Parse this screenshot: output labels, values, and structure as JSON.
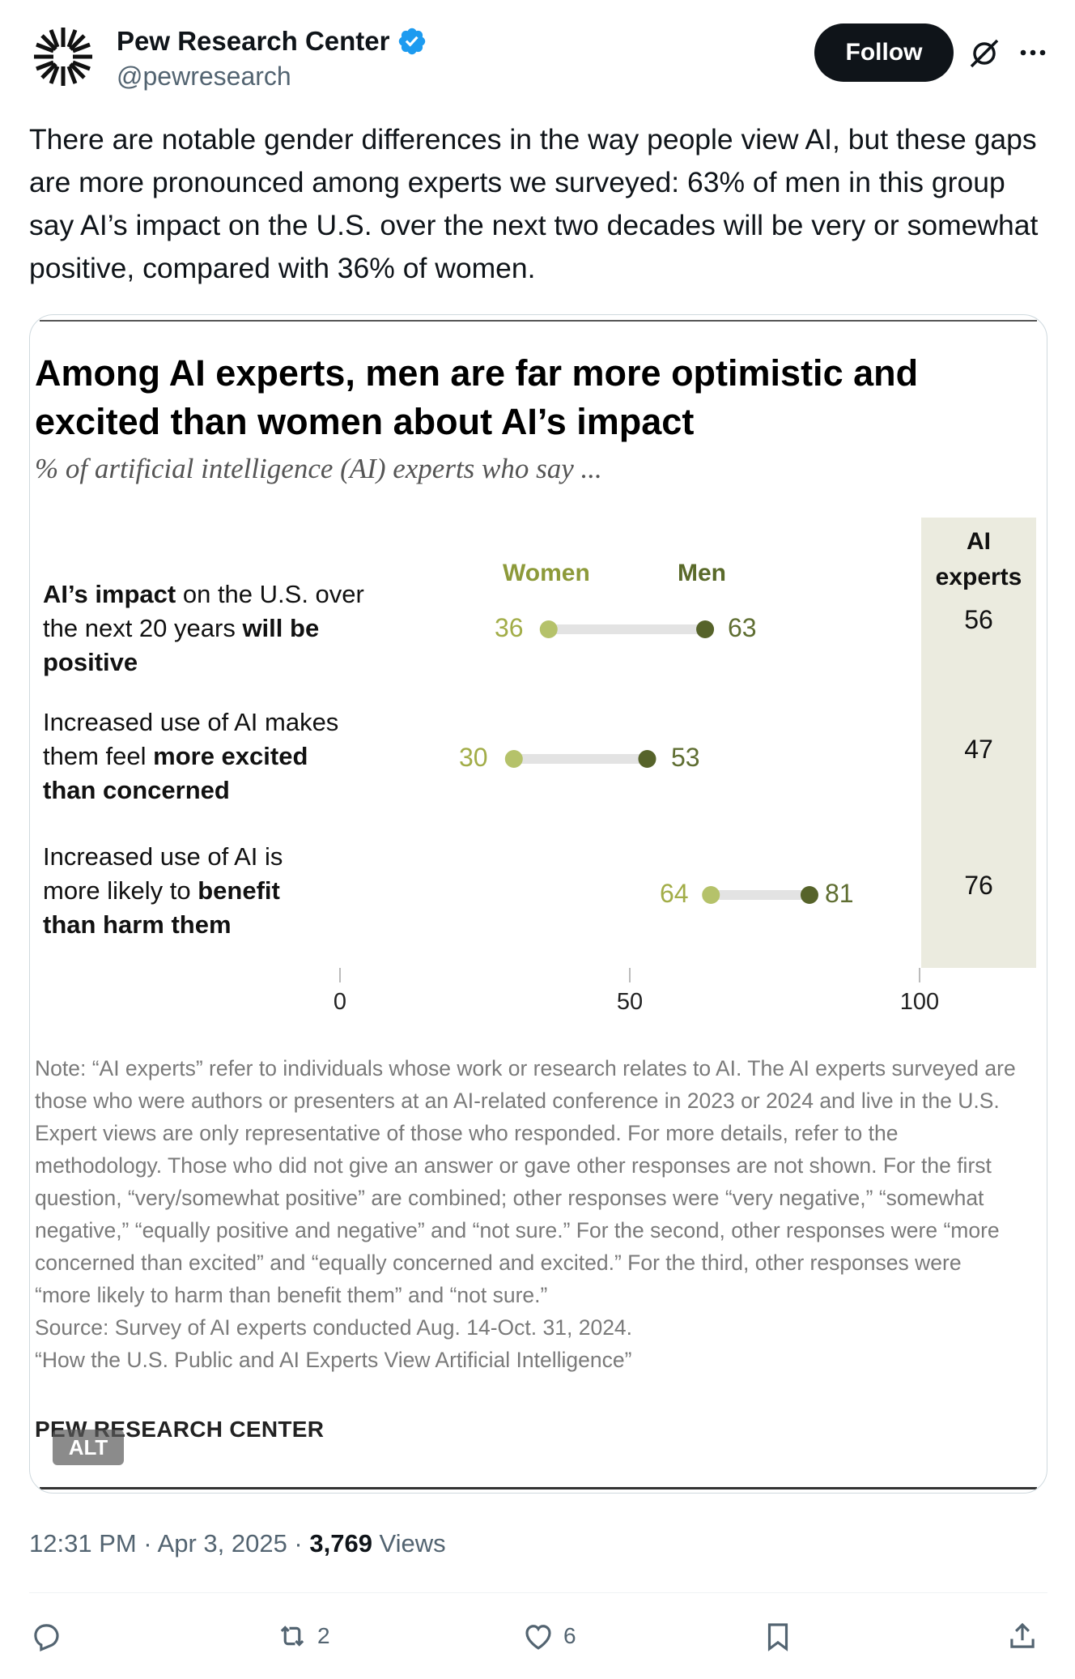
{
  "author": {
    "name": "Pew Research Center",
    "handle": "@pewresearch",
    "follow_label": "Follow"
  },
  "tweet": {
    "text": "There are notable gender differences in the way people view AI, but these gaps are more pronounced among experts we surveyed: 63% of men in this group say AI’s impact on the U.S. over the next two decades will be very or somewhat positive, compared with 36% of women."
  },
  "chart": {
    "title": "Among AI experts, men are far more optimistic and excited than women about AI’s impact",
    "subtitle": "% of artificial intelligence (AI) experts who say ...",
    "legend_women": "Women",
    "legend_men": "Men",
    "experts_header_1": "AI",
    "experts_header_2": "experts",
    "rows": [
      {
        "label_pre": "",
        "label_bold_1": "AI’s impact",
        "label_mid": " on the U.S. over the next 20 years ",
        "label_bold_2": "will be positive",
        "women": 36,
        "men": 63,
        "experts": 56
      },
      {
        "label_pre": "Increased use of AI makes them feel ",
        "label_bold_1": "more excited than concerned",
        "label_mid": "",
        "label_bold_2": "",
        "women": 30,
        "men": 53,
        "experts": 47
      },
      {
        "label_pre": "Increased use of AI is more likely to ",
        "label_bold_1": "benefit than harm them",
        "label_mid": "",
        "label_bold_2": "",
        "women": 64,
        "men": 81,
        "experts": 76
      }
    ],
    "axis_labels": [
      "0",
      "50",
      "100"
    ],
    "note": "Note: “AI experts” refer to individuals whose work or research relates to AI. The AI experts surveyed are those who were authors or presenters at an AI-related conference in 2023 or 2024 and live in the U.S. Expert views are only representative of those who responded. For more details, refer to the methodology. Those who did not give an answer or gave other responses are not shown. For the first question, “very/somewhat positive” are combined; other responses were “very negative,” “somewhat negative,” “equally positive and negative” and “not sure.” For the second, other responses were “more concerned than excited” and “equally concerned and excited.” For the third, other responses were “more likely to harm than benefit them” and “not sure.”",
    "source": "Source: Survey of AI experts conducted Aug. 14-Oct. 31, 2024.",
    "report": "“How the U.S. Public and AI Experts View Artificial Intelligence”",
    "logo_text": "PEW RESEARCH CENTER",
    "alt_label": "ALT",
    "colors": {
      "women": "#b5c26a",
      "men": "#56632a",
      "bar": "#e3e3e3",
      "experts_bg": "#ebebdf"
    }
  },
  "chart_data": {
    "type": "scatter",
    "title": "Among AI experts, men are far more optimistic and excited than women about AI’s impact",
    "subtitle": "% of artificial intelligence (AI) experts who say ...",
    "categories": [
      "AI’s impact on the U.S. over the next 20 years will be positive",
      "Increased use of AI makes them feel more excited than concerned",
      "Increased use of AI is more likely to benefit than harm them"
    ],
    "series": [
      {
        "name": "Women",
        "values": [
          36,
          30,
          64
        ]
      },
      {
        "name": "Men",
        "values": [
          63,
          53,
          81
        ]
      },
      {
        "name": "AI experts",
        "values": [
          56,
          47,
          76
        ]
      }
    ],
    "xlim": [
      0,
      100
    ],
    "xticks": [
      0,
      50,
      100
    ]
  },
  "meta": {
    "time": "12:31 PM · Apr 3, 2025 · ",
    "views_count": "3,769",
    "views_label": " Views"
  },
  "actions": {
    "reply_count": "",
    "retweet_count": "2",
    "like_count": "6"
  }
}
